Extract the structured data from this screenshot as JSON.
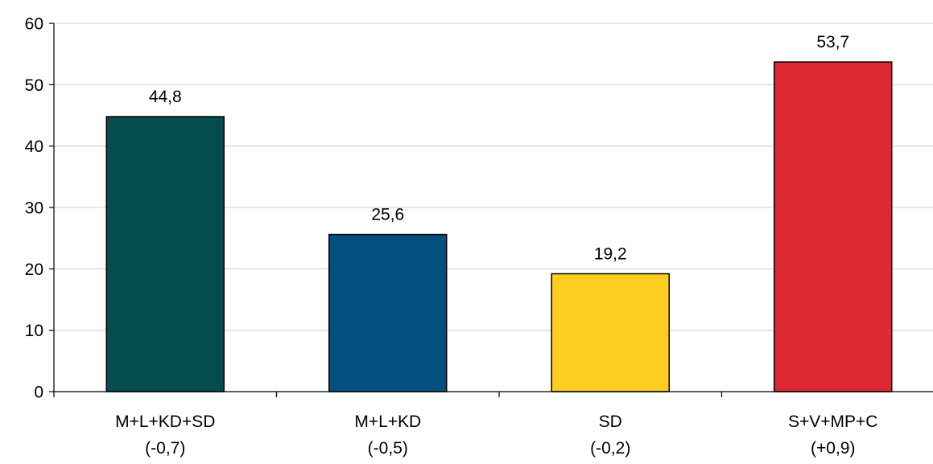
{
  "chart_data": {
    "type": "bar",
    "categories": [
      [
        "M+L+KD+SD",
        "(-0,7)"
      ],
      [
        "M+L+KD",
        "(-0,5)"
      ],
      [
        "SD",
        "(-0,2)"
      ],
      [
        "S+V+MP+C",
        "(+0,9)"
      ]
    ],
    "values": [
      44.8,
      25.6,
      19.2,
      53.7
    ],
    "value_labels": [
      "44,8",
      "25,6",
      "19,2",
      "53,7"
    ],
    "colors": [
      "#054c4e",
      "#03507e",
      "#fdcd22",
      "#de2833"
    ],
    "yticks": [
      "0",
      "10",
      "20",
      "30",
      "40",
      "50",
      "60"
    ],
    "ylim": [
      0,
      60
    ],
    "grid": true,
    "title": "",
    "xlabel": "",
    "ylabel": ""
  }
}
